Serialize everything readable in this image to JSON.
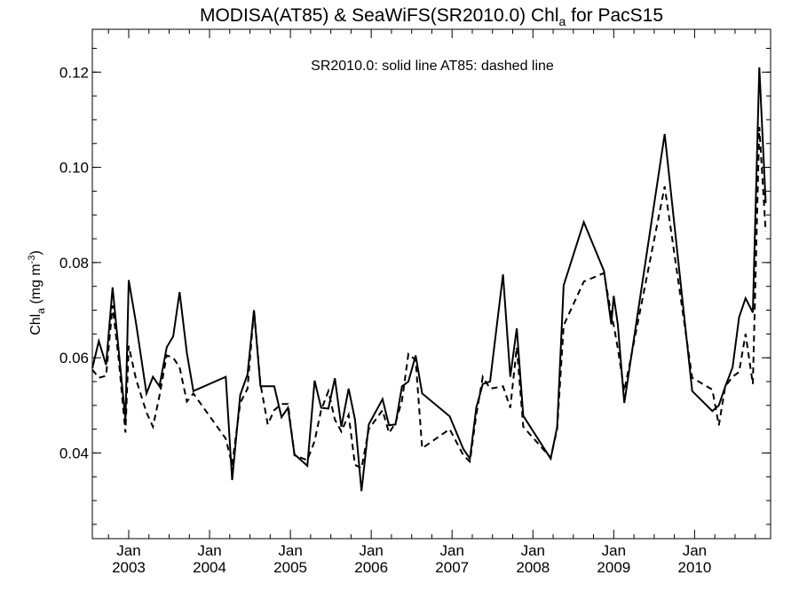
{
  "chart_data": {
    "type": "line",
    "title": "MODISA(AT85) & SeaWiFS(SR2010.0)  Chl",
    "title_subscript": "a",
    "title_suffix": " for PacS15",
    "annotation": "SR2010.0: solid line   AT85: dashed line",
    "ylabel": "Chl",
    "ylabel_subscript": "a",
    "ylabel_units": " (mg m",
    "ylabel_units_superscript": "-3",
    "ylabel_units_close": ")",
    "ylim": [
      0.022,
      0.129
    ],
    "xlim": [
      2002.55,
      2010.94
    ],
    "yticks": [
      0.04,
      0.06,
      0.08,
      0.1,
      0.12
    ],
    "ytick_labels": [
      "0.04",
      "0.06",
      "0.08",
      "0.10",
      "0.12"
    ],
    "xticks": [
      {
        "value": 2003.0,
        "month": "Jan",
        "year": "2003"
      },
      {
        "value": 2004.0,
        "month": "Jan",
        "year": "2004"
      },
      {
        "value": 2005.0,
        "month": "Jan",
        "year": "2005"
      },
      {
        "value": 2006.0,
        "month": "Jan",
        "year": "2006"
      },
      {
        "value": 2007.0,
        "month": "Jan",
        "year": "2007"
      },
      {
        "value": 2008.0,
        "month": "Jan",
        "year": "2008"
      },
      {
        "value": 2009.0,
        "month": "Jan",
        "year": "2009"
      },
      {
        "value": 2010.0,
        "month": "Jan",
        "year": "2010"
      }
    ],
    "grid": false,
    "series": [
      {
        "name": "SR2010.0",
        "style": "solid",
        "color": "#000000",
        "points": [
          [
            2002.55,
            0.0578
          ],
          [
            2002.63,
            0.0635
          ],
          [
            2002.72,
            0.0585
          ],
          [
            2002.8,
            0.0748
          ],
          [
            2002.88,
            0.0607
          ],
          [
            2002.96,
            0.047
          ],
          [
            2003.0,
            0.0763
          ],
          [
            2003.09,
            0.0673
          ],
          [
            2003.22,
            0.0525
          ],
          [
            2003.3,
            0.056
          ],
          [
            2003.38,
            0.054
          ],
          [
            2003.47,
            0.0622
          ],
          [
            2003.55,
            0.0645
          ],
          [
            2003.63,
            0.0738
          ],
          [
            2003.72,
            0.061
          ],
          [
            2003.8,
            0.053
          ],
          [
            2004.2,
            0.056
          ],
          [
            2004.28,
            0.0343
          ],
          [
            2004.38,
            0.0522
          ],
          [
            2004.47,
            0.0565
          ],
          [
            2004.55,
            0.07
          ],
          [
            2004.63,
            0.054
          ],
          [
            2004.72,
            0.054
          ],
          [
            2004.8,
            0.054
          ],
          [
            2004.89,
            0.0475
          ],
          [
            2004.97,
            0.0495
          ],
          [
            2005.05,
            0.0397
          ],
          [
            2005.21,
            0.0373
          ],
          [
            2005.3,
            0.0552
          ],
          [
            2005.38,
            0.0495
          ],
          [
            2005.47,
            0.0493
          ],
          [
            2005.55,
            0.0557
          ],
          [
            2005.63,
            0.0455
          ],
          [
            2005.72,
            0.0535
          ],
          [
            2005.8,
            0.047
          ],
          [
            2005.88,
            0.032
          ],
          [
            2005.97,
            0.046
          ],
          [
            2006.14,
            0.0513
          ],
          [
            2006.22,
            0.0458
          ],
          [
            2006.3,
            0.046
          ],
          [
            2006.38,
            0.054
          ],
          [
            2006.46,
            0.055
          ],
          [
            2006.55,
            0.0605
          ],
          [
            2006.63,
            0.0525
          ],
          [
            2006.97,
            0.0477
          ],
          [
            2007.14,
            0.0408
          ],
          [
            2007.22,
            0.0388
          ],
          [
            2007.3,
            0.0495
          ],
          [
            2007.38,
            0.0545
          ],
          [
            2007.47,
            0.055
          ],
          [
            2007.63,
            0.0775
          ],
          [
            2007.72,
            0.056
          ],
          [
            2007.8,
            0.0662
          ],
          [
            2007.88,
            0.0478
          ],
          [
            2008.22,
            0.0388
          ],
          [
            2008.3,
            0.0455
          ],
          [
            2008.38,
            0.0752
          ],
          [
            2008.63,
            0.0885
          ],
          [
            2008.88,
            0.0782
          ],
          [
            2008.97,
            0.067
          ],
          [
            2009.0,
            0.073
          ],
          [
            2009.05,
            0.067
          ],
          [
            2009.13,
            0.0505
          ],
          [
            2009.63,
            0.107
          ],
          [
            2009.97,
            0.053
          ],
          [
            2010.22,
            0.0488
          ],
          [
            2010.3,
            0.05
          ],
          [
            2010.38,
            0.054
          ],
          [
            2010.47,
            0.058
          ],
          [
            2010.55,
            0.0685
          ],
          [
            2010.63,
            0.0725
          ],
          [
            2010.72,
            0.0695
          ],
          [
            2010.8,
            0.121
          ],
          [
            2010.88,
            0.0925
          ]
        ]
      },
      {
        "name": "AT85",
        "style": "dashed",
        "color": "#000000",
        "points": [
          [
            2002.55,
            0.0575
          ],
          [
            2002.63,
            0.0558
          ],
          [
            2002.72,
            0.0562
          ],
          [
            2002.8,
            0.071
          ],
          [
            2002.88,
            0.059
          ],
          [
            2002.96,
            0.0443
          ],
          [
            2003.0,
            0.0625
          ],
          [
            2003.09,
            0.0555
          ],
          [
            2003.22,
            0.0485
          ],
          [
            2003.3,
            0.0455
          ],
          [
            2003.38,
            0.052
          ],
          [
            2003.47,
            0.0605
          ],
          [
            2003.55,
            0.06
          ],
          [
            2003.63,
            0.058
          ],
          [
            2003.72,
            0.0508
          ],
          [
            2003.8,
            0.0525
          ],
          [
            2004.2,
            0.043
          ],
          [
            2004.28,
            0.0375
          ],
          [
            2004.38,
            0.0505
          ],
          [
            2004.47,
            0.0535
          ],
          [
            2004.55,
            0.07
          ],
          [
            2004.63,
            0.0545
          ],
          [
            2004.72,
            0.046
          ],
          [
            2004.8,
            0.049
          ],
          [
            2004.89,
            0.0503
          ],
          [
            2004.97,
            0.0503
          ],
          [
            2005.05,
            0.0395
          ],
          [
            2005.21,
            0.0385
          ],
          [
            2005.3,
            0.0425
          ],
          [
            2005.38,
            0.049
          ],
          [
            2005.47,
            0.053
          ],
          [
            2005.55,
            0.047
          ],
          [
            2005.63,
            0.0445
          ],
          [
            2005.72,
            0.048
          ],
          [
            2005.8,
            0.0375
          ],
          [
            2005.88,
            0.0368
          ],
          [
            2005.97,
            0.045
          ],
          [
            2006.14,
            0.049
          ],
          [
            2006.22,
            0.0442
          ],
          [
            2006.3,
            0.0463
          ],
          [
            2006.38,
            0.051
          ],
          [
            2006.46,
            0.0608
          ],
          [
            2006.55,
            0.0595
          ],
          [
            2006.63,
            0.041
          ],
          [
            2006.97,
            0.045
          ],
          [
            2007.14,
            0.0395
          ],
          [
            2007.22,
            0.0382
          ],
          [
            2007.3,
            0.048
          ],
          [
            2007.38,
            0.056
          ],
          [
            2007.47,
            0.0535
          ],
          [
            2007.63,
            0.054
          ],
          [
            2007.72,
            0.0495
          ],
          [
            2007.8,
            0.0622
          ],
          [
            2007.88,
            0.0455
          ],
          [
            2008.22,
            0.039
          ],
          [
            2008.3,
            0.045
          ],
          [
            2008.38,
            0.0668
          ],
          [
            2008.63,
            0.076
          ],
          [
            2008.88,
            0.0778
          ],
          [
            2008.97,
            0.069
          ],
          [
            2009.0,
            0.0668
          ],
          [
            2009.05,
            0.062
          ],
          [
            2009.13,
            0.053
          ],
          [
            2009.63,
            0.096
          ],
          [
            2009.97,
            0.0558
          ],
          [
            2010.22,
            0.0533
          ],
          [
            2010.3,
            0.0458
          ],
          [
            2010.38,
            0.054
          ],
          [
            2010.47,
            0.056
          ],
          [
            2010.55,
            0.057
          ],
          [
            2010.63,
            0.065
          ],
          [
            2010.72,
            0.0545
          ],
          [
            2010.8,
            0.1085
          ],
          [
            2010.88,
            0.0865
          ]
        ]
      }
    ]
  }
}
